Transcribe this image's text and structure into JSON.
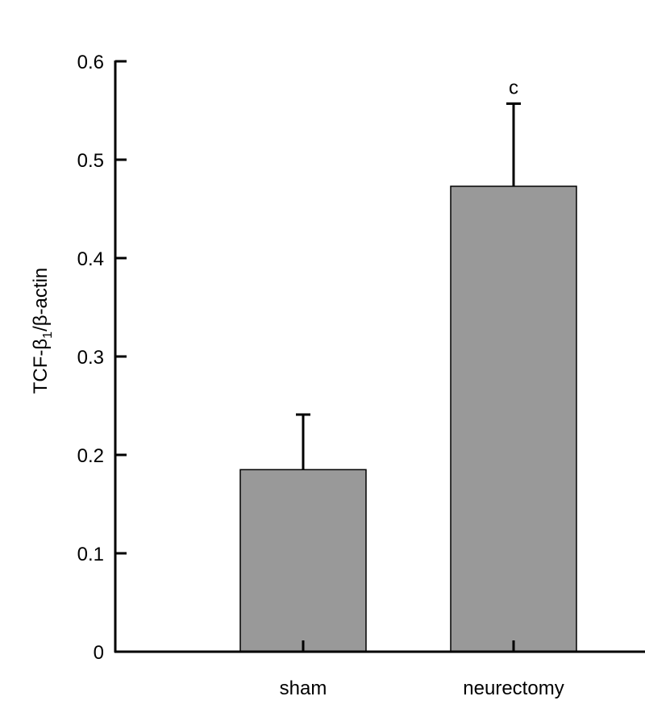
{
  "chart_data": {
    "type": "bar",
    "categories": [
      "sham",
      "neurectomy"
    ],
    "values": [
      0.185,
      0.473
    ],
    "error_upper": [
      0.241,
      0.557
    ],
    "annotations": [
      "",
      "c"
    ],
    "ylabel": "TCF-β1/β-actin",
    "ylabel_parts": {
      "pre": "TCF-β",
      "sub": "1",
      "post": "/β-actin"
    },
    "ylim": [
      0,
      0.6
    ],
    "yticks": [
      0,
      0.1,
      0.2,
      0.3,
      0.4,
      0.5,
      0.6
    ],
    "ytick_labels": [
      "0",
      "0.1",
      "0.2",
      "0.3",
      "0.4",
      "0.5",
      "0.6"
    ],
    "grid": false,
    "legend": "none",
    "bar_color": "#999999",
    "line_color": "#000000"
  }
}
